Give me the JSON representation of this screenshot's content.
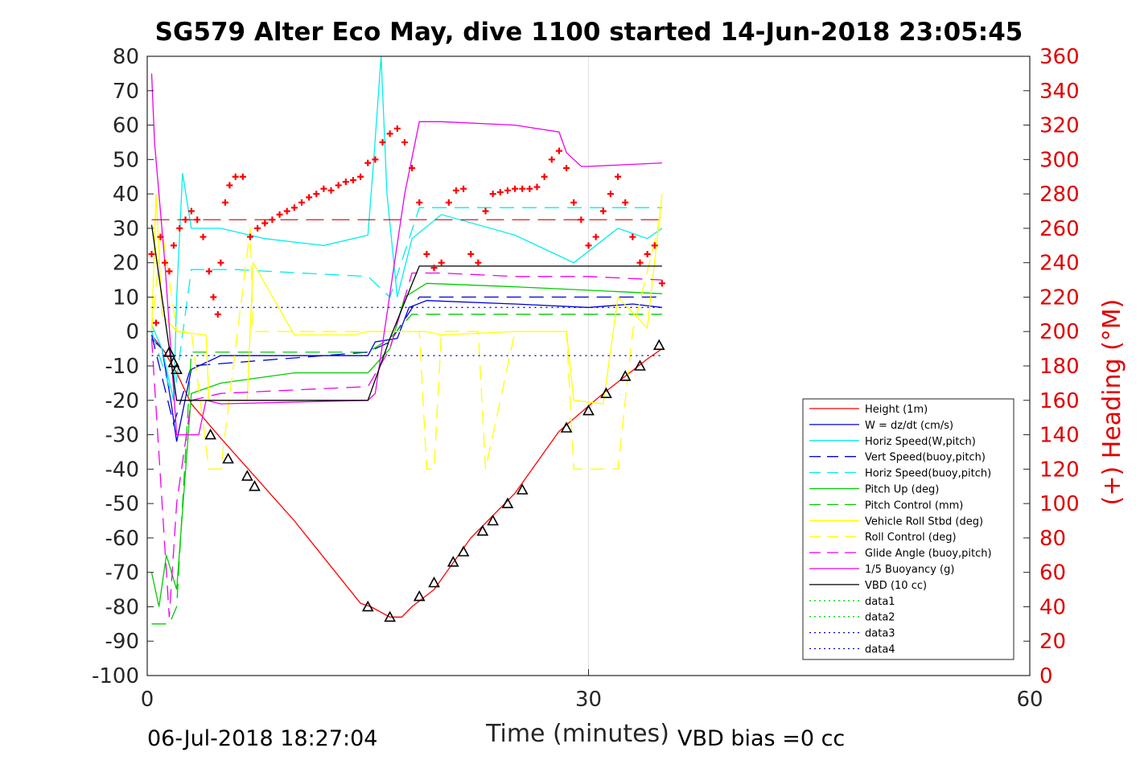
{
  "chart_data": {
    "type": "line",
    "title": "SG579 Alter Eco May, dive 1100 started 14-Jun-2018 23:05:45",
    "xlabel": "Time (minutes)",
    "ylabel": "",
    "y2label": "(+) Heading (°M)",
    "xlim": [
      0,
      60
    ],
    "ylim": [
      -100,
      80
    ],
    "y2lim": [
      0,
      360
    ],
    "xticks": [
      0,
      30,
      60
    ],
    "yticks": [
      80,
      70,
      60,
      50,
      40,
      30,
      20,
      10,
      0,
      -10,
      -20,
      -30,
      -40,
      -50,
      -60,
      -70,
      -80,
      -90,
      -100
    ],
    "y2ticks": [
      360,
      340,
      320,
      300,
      280,
      260,
      240,
      220,
      200,
      180,
      160,
      140,
      120,
      100,
      80,
      60,
      40,
      20,
      0
    ],
    "grid": "x-at-30",
    "legend_position": "lower-right",
    "footer_left": "06-Jul-2018 18:27:04",
    "footer_right": "VBD bias =0 cc",
    "series": [
      {
        "name": "Height (1m)",
        "color": "#ff0000",
        "style": "solid",
        "x": [
          0.3,
          1.2,
          2.0,
          3.0,
          5.0,
          10.0,
          14.5,
          15.2,
          16.5,
          17.3,
          18.0,
          19.5,
          22.0,
          25.0,
          28.0,
          31.0,
          34.0,
          35.0
        ],
        "y": [
          -1,
          -6,
          -12,
          -21,
          -31,
          -55,
          -79,
          -80,
          -83,
          -83,
          -80,
          -75,
          -60,
          -47,
          -29,
          -18,
          -8,
          -5
        ]
      },
      {
        "name": "W = dz/dt (cm/s)",
        "color": "#0000dd",
        "style": "solid",
        "x": [
          0.3,
          1.0,
          1.6,
          2.0,
          3.0,
          5.0,
          10.0,
          15.0,
          15.5,
          17.0,
          17.8,
          19.0,
          25.0,
          30.0,
          33.0,
          35.0
        ],
        "y": [
          -2,
          -5,
          -20,
          -32,
          -11,
          -7,
          -7,
          -7,
          -3,
          -2,
          7,
          9,
          8,
          7,
          8,
          7
        ]
      },
      {
        "name": "Horiz Speed(W,pitch)",
        "color": "#00eeee",
        "style": "solid",
        "x": [
          0.3,
          1.0,
          1.8,
          2.0,
          2.4,
          3.0,
          5.0,
          8.0,
          12.0,
          15.0,
          15.4,
          15.9,
          16.3,
          17.0,
          18.0,
          20.0,
          25.0,
          29.0,
          32.0,
          34.0,
          35.0
        ],
        "y": [
          2,
          -5,
          -20,
          10,
          46,
          30,
          30,
          27,
          25,
          28,
          50,
          80,
          40,
          10,
          27,
          34,
          28,
          20,
          30,
          27,
          30
        ]
      },
      {
        "name": "Vert Speed(buoy,pitch)",
        "color": "#0000dd",
        "style": "dash",
        "x": [
          0.3,
          1.8,
          3.0,
          15.0,
          16.5,
          18.5,
          35.0
        ],
        "y": [
          -1,
          -27,
          -10,
          -6,
          -3,
          10,
          10
        ]
      },
      {
        "name": "Horiz Speed(buoy,pitch)",
        "color": "#00eeee",
        "style": "dash",
        "x": [
          0.3,
          1.8,
          3.0,
          6.0,
          15.0,
          16.5,
          18.5,
          35.0
        ],
        "y": [
          0,
          -20,
          18,
          18,
          16,
          10,
          36,
          36
        ]
      },
      {
        "name": "Pitch Up (deg)",
        "color": "#00cc00",
        "style": "solid",
        "x": [
          0.3,
          0.8,
          1.3,
          2.0,
          3.0,
          5.0,
          10.0,
          15.0,
          16.5,
          17.5,
          19.0,
          25.0,
          30.0,
          35.0
        ],
        "y": [
          -70,
          -80,
          -65,
          -75,
          -18,
          -15,
          -12,
          -12,
          -5,
          10,
          14,
          13,
          12,
          11
        ]
      },
      {
        "name": "Pitch Control (mm)",
        "color": "#00cc00",
        "style": "dash",
        "x": [
          0.3,
          1.5,
          2.0,
          3.0,
          15.0,
          16.5,
          18.0,
          35.0
        ],
        "y": [
          -85,
          -85,
          -80,
          -6,
          -6,
          -2,
          5,
          5
        ]
      },
      {
        "name": "Vehicle Roll Stbd (deg)",
        "color": "#ffff00",
        "style": "solid",
        "x": [
          0.3,
          0.6,
          1.0,
          2.0,
          4.0,
          4.2,
          5.0,
          6.8,
          7.2,
          10.0,
          14.0,
          15.0,
          19.0,
          20.0,
          25.0,
          28.5,
          29.0,
          31.0,
          32.0,
          34.0,
          35.0
        ],
        "y": [
          0,
          40,
          5,
          0,
          -1,
          -20,
          -20,
          -20,
          20,
          -1,
          -1,
          0,
          0,
          -1,
          0,
          0,
          -20,
          -21,
          10,
          1,
          40
        ]
      },
      {
        "name": "Roll Control (deg)",
        "color": "#ffff00",
        "style": "dash",
        "x": [
          0.3,
          1.0,
          2.0,
          3.0,
          4.2,
          5.0,
          7.0,
          7.2,
          15.0,
          18.5,
          19.0,
          19.5,
          20.0,
          22.5,
          23.0,
          25.0,
          28.5,
          29.0,
          32.0,
          33.0,
          35.0
        ],
        "y": [
          0,
          30,
          0,
          0,
          -40,
          -40,
          30,
          0,
          0,
          0,
          -40,
          -40,
          0,
          0,
          -40,
          0,
          0,
          -40,
          -40,
          0,
          35
        ]
      },
      {
        "name": "Glide Angle (buoy,pitch)",
        "color": "#ee00ee",
        "style": "dash",
        "x": [
          0.3,
          1.5,
          2.0,
          3.0,
          5.0,
          10.0,
          15.0,
          16.5,
          18.0,
          20.0,
          25.0,
          30.0,
          35.0
        ],
        "y": [
          -2,
          -83,
          -50,
          -20,
          -18,
          -17,
          -16,
          -5,
          17,
          17,
          16,
          16,
          15
        ]
      },
      {
        "name": "1/5 Buoyancy (g)",
        "color": "#ee00ee",
        "style": "solid",
        "x": [
          0.3,
          0.5,
          1.2,
          2.0,
          3.5,
          4.0,
          5.0,
          15.0,
          15.5,
          17.5,
          18.5,
          20.0,
          25.0,
          28.0,
          28.5,
          29.5,
          30.0,
          35.0
        ],
        "y": [
          75,
          55,
          20,
          -30,
          -30,
          -20,
          -21,
          -20,
          -18,
          40,
          61,
          61,
          60,
          58,
          52,
          48,
          48,
          49
        ]
      },
      {
        "name": "VBD (10 cc)",
        "color": "#000000",
        "style": "solid",
        "x": [
          0.3,
          2.0,
          3.0,
          15.0,
          16.5,
          18.5,
          35.0
        ],
        "y": [
          31,
          -20,
          -20,
          -20,
          -2,
          19,
          19
        ]
      },
      {
        "name": "data1",
        "color": "#00dd00",
        "style": "dot",
        "x": [],
        "y": []
      },
      {
        "name": "data2",
        "color": "#00dd00",
        "style": "dot",
        "x": [],
        "y": []
      },
      {
        "name": "data3",
        "color": "#0000dd",
        "style": "dot",
        "x": [
          0.3,
          35.0
        ],
        "y": [
          7,
          7
        ]
      },
      {
        "name": "data4",
        "color": "#0000dd",
        "style": "dot",
        "x": [
          0.3,
          35.0
        ],
        "y": [
          -7,
          -7
        ]
      }
    ],
    "reference_lines": [
      {
        "axis": "y2",
        "value": 265,
        "color": "#cc0000",
        "style": "longdash"
      }
    ],
    "heading_points": {
      "axis": "y2",
      "color": "#ff0000",
      "marker": "plus",
      "x": [
        0.3,
        0.6,
        0.9,
        1.2,
        1.5,
        1.8,
        2.2,
        2.6,
        3.0,
        3.4,
        3.8,
        4.2,
        4.5,
        4.8,
        5.0,
        5.3,
        5.6,
        6.0,
        6.5,
        7.0,
        7.5,
        8.0,
        8.5,
        9.0,
        9.5,
        10.0,
        10.5,
        11.0,
        11.5,
        12.0,
        12.5,
        13.0,
        13.5,
        14.0,
        14.5,
        15.0,
        15.5,
        16.0,
        16.5,
        17.0,
        17.5,
        18.0,
        18.5,
        19.0,
        19.5,
        20.0,
        20.5,
        21.0,
        21.5,
        22.0,
        22.5,
        23.0,
        23.5,
        24.0,
        24.5,
        25.0,
        25.5,
        26.0,
        26.5,
        27.0,
        27.5,
        28.0,
        28.5,
        29.0,
        29.5,
        30.0,
        30.5,
        31.0,
        31.5,
        32.0,
        32.5,
        33.0,
        33.5,
        34.0,
        34.5,
        35.0
      ],
      "y": [
        245,
        205,
        255,
        240,
        235,
        250,
        260,
        265,
        270,
        265,
        255,
        235,
        220,
        210,
        240,
        275,
        285,
        290,
        290,
        255,
        260,
        263,
        265,
        268,
        270,
        272,
        275,
        278,
        280,
        283,
        282,
        285,
        287,
        288,
        290,
        298,
        300,
        310,
        315,
        318,
        310,
        295,
        275,
        245,
        237,
        240,
        275,
        282,
        283,
        245,
        240,
        270,
        280,
        281,
        282,
        283,
        283,
        283,
        284,
        290,
        300,
        305,
        295,
        275,
        265,
        250,
        255,
        270,
        280,
        290,
        275,
        255,
        240,
        245,
        250,
        228
      ]
    },
    "depth_markers": {
      "axis": "y",
      "color": "#000000",
      "marker": "triangle",
      "x": [
        1.5,
        1.8,
        2.0,
        4.3,
        5.5,
        6.8,
        7.3,
        15.0,
        16.5,
        18.5,
        19.5,
        20.8,
        21.5,
        22.8,
        23.5,
        24.5,
        25.5,
        28.5,
        30.0,
        31.2,
        32.5,
        33.5,
        34.8
      ],
      "y": [
        -6,
        -9,
        -11,
        -30,
        -37,
        -42,
        -45,
        -80,
        -83,
        -77,
        -73,
        -67,
        -64,
        -58,
        -55,
        -50,
        -46,
        -28,
        -23,
        -18,
        -13,
        -10,
        -4
      ]
    }
  }
}
